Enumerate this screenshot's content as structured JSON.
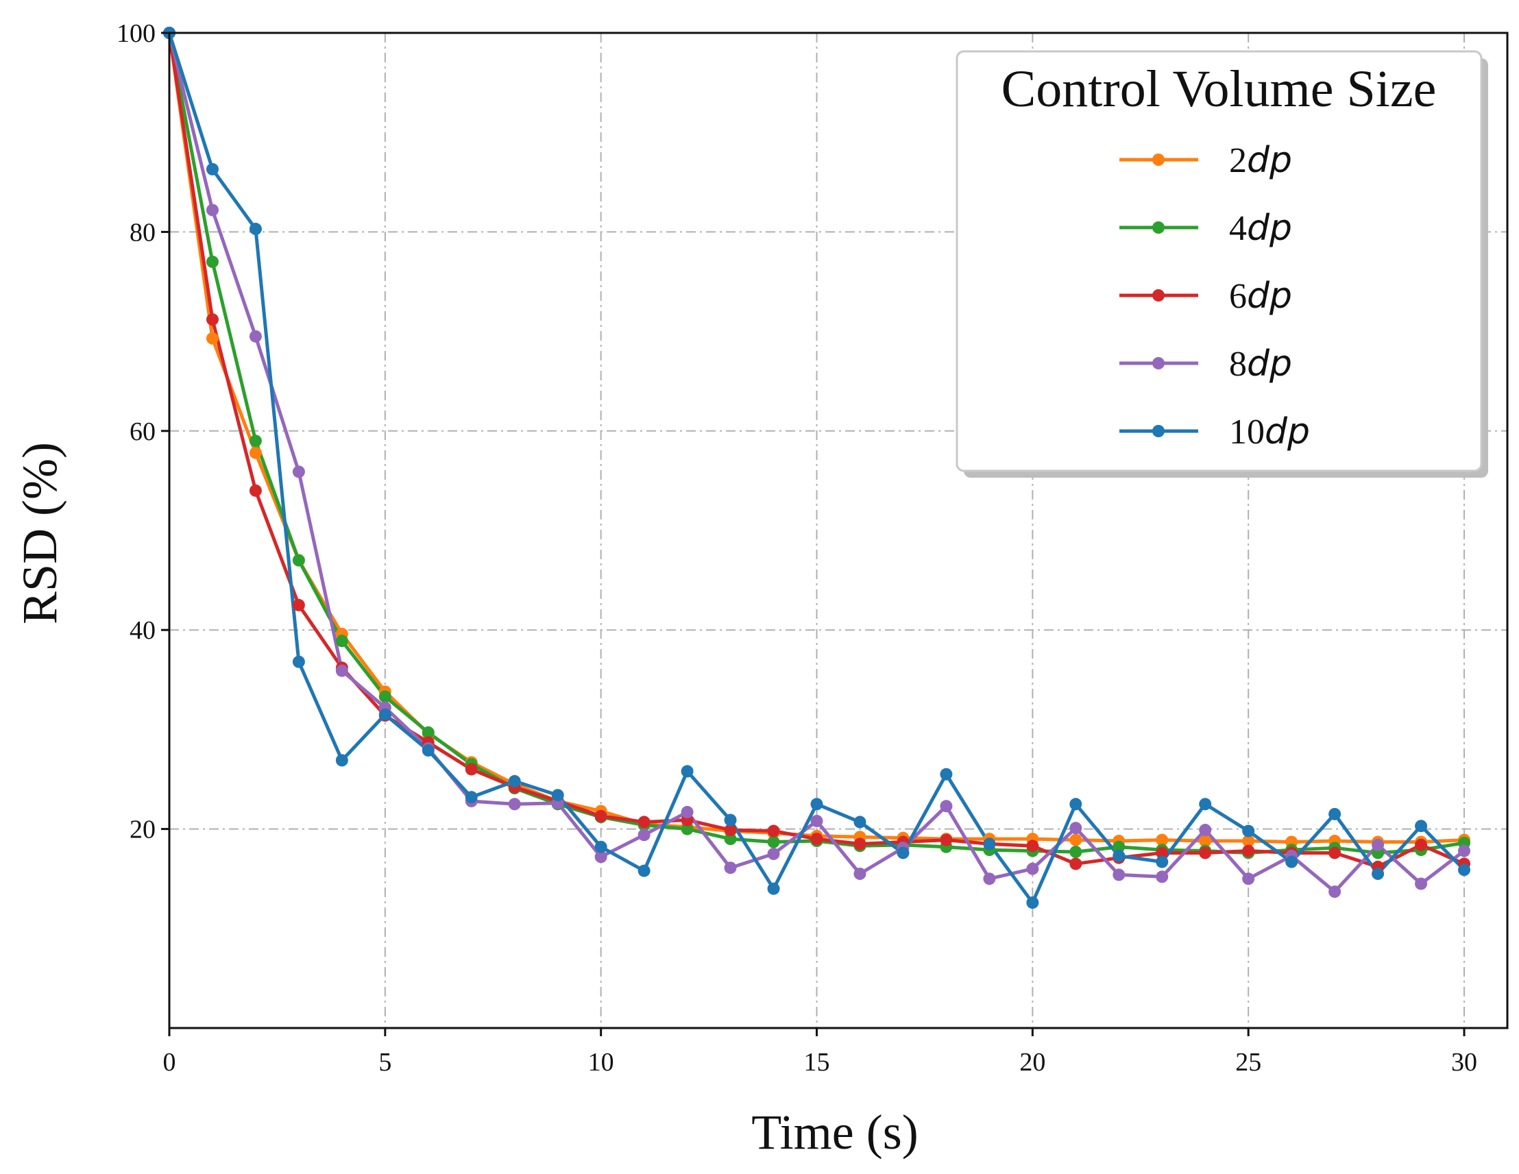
{
  "chart_data": {
    "type": "line",
    "xlabel": "Time (s)",
    "ylabel": "RSD (%)",
    "xlim": [
      0,
      31
    ],
    "ylim": [
      0,
      100
    ],
    "xticks": [
      0,
      5,
      10,
      15,
      20,
      25,
      30
    ],
    "yticks": [
      20,
      40,
      60,
      80,
      100
    ],
    "grid": true,
    "legend": {
      "title": "Control Volume Size",
      "position": "top-right"
    },
    "x": [
      0,
      1,
      2,
      3,
      4,
      5,
      6,
      7,
      8,
      9,
      10,
      11,
      12,
      13,
      14,
      15,
      16,
      17,
      18,
      19,
      20,
      21,
      22,
      23,
      24,
      25,
      26,
      27,
      28,
      29,
      30
    ],
    "series": [
      {
        "name": "2dp",
        "prefix": "2",
        "suffix": "dp",
        "color": "#ff7f0e",
        "values": [
          100,
          69.3,
          57.8,
          47,
          39.6,
          33.8,
          29.6,
          26.7,
          24.5,
          22.8,
          21.8,
          20.5,
          20.2,
          19.8,
          19.6,
          19.3,
          19.2,
          19.1,
          19,
          19,
          19,
          18.9,
          18.8,
          18.9,
          18.8,
          18.8,
          18.7,
          18.8,
          18.7,
          18.7,
          18.9
        ]
      },
      {
        "name": "4dp",
        "prefix": "4",
        "suffix": "dp",
        "color": "#2ca02c",
        "values": [
          100,
          77,
          59,
          47,
          38.9,
          33.3,
          29.7,
          26.5,
          24.1,
          22.5,
          21.2,
          20.4,
          20,
          19,
          18.7,
          18.8,
          18.3,
          18.4,
          18.2,
          17.9,
          17.8,
          17.7,
          18.2,
          17.9,
          17.8,
          17.6,
          17.9,
          18.1,
          17.6,
          17.9,
          18.6
        ]
      },
      {
        "name": "6dp",
        "prefix": "6",
        "suffix": "dp",
        "color": "#d62728",
        "values": [
          100,
          71.2,
          54,
          42.5,
          36.2,
          31.4,
          28.7,
          26,
          24.2,
          22.8,
          21.3,
          20.7,
          20.9,
          19.9,
          19.8,
          19,
          18.5,
          18.7,
          18.9,
          18.5,
          18.3,
          16.5,
          17.1,
          17.6,
          17.6,
          17.8,
          17.6,
          17.6,
          16.2,
          18.4,
          16.5
        ]
      },
      {
        "name": "8dp",
        "prefix": "8",
        "suffix": "dp",
        "color": "#9467bd",
        "values": [
          100,
          82.2,
          69.5,
          55.9,
          35.9,
          32.2,
          28.1,
          22.8,
          22.5,
          22.6,
          17.2,
          19.4,
          21.7,
          16.1,
          17.5,
          20.8,
          15.5,
          18.1,
          22.3,
          15,
          16,
          20.1,
          15.4,
          15.2,
          19.9,
          15,
          17.3,
          13.7,
          18.4,
          14.5,
          17.8
        ]
      },
      {
        "name": "10dp",
        "prefix": "10",
        "suffix": "dp",
        "color": "#1f77b4",
        "values": [
          100,
          86.3,
          80.3,
          36.8,
          26.9,
          31.5,
          27.9,
          23.2,
          24.8,
          23.4,
          18.2,
          15.8,
          25.8,
          20.9,
          14,
          22.5,
          20.7,
          17.6,
          25.5,
          18.5,
          12.6,
          22.5,
          17.3,
          16.7,
          22.5,
          19.8,
          16.7,
          21.5,
          15.5,
          20.3,
          15.9
        ]
      }
    ]
  }
}
